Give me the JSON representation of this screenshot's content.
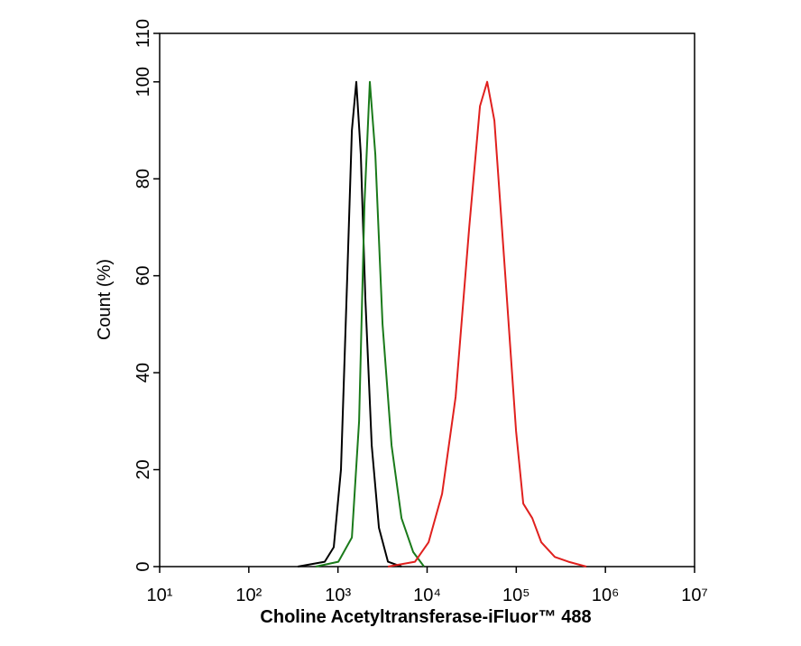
{
  "chart_data": {
    "type": "line",
    "xlabel": "Choline Acetyltransferase-iFluor™ 488",
    "ylabel": "Count  (%)",
    "xscale": "log",
    "xlim": [
      10,
      10000000
    ],
    "xticks": [
      {
        "value": 10,
        "label": "10¹"
      },
      {
        "value": 100,
        "label": "10²"
      },
      {
        "value": 1000,
        "label": "10³"
      },
      {
        "value": 10000,
        "label": "10⁴"
      },
      {
        "value": 100000,
        "label": "10⁵"
      },
      {
        "value": 1000000,
        "label": "10⁶"
      },
      {
        "value": 10000000,
        "label": "10⁷"
      }
    ],
    "ylim": [
      0,
      110
    ],
    "yticks": [
      0,
      20,
      40,
      60,
      80,
      100,
      110
    ],
    "series": [
      {
        "color": "#000000",
        "x": [
          354,
          711,
          897,
          1081,
          1273,
          1432,
          1607,
          1806,
          2032,
          2393,
          2880,
          3637,
          5162
        ],
        "values": [
          0,
          1,
          4,
          20,
          60,
          90,
          100,
          85,
          55,
          25,
          8,
          1,
          0
        ]
      },
      {
        "color": "#1a7a1a",
        "x": [
          564,
          1009,
          1432,
          1726,
          1985,
          2280,
          2623,
          3162,
          3990,
          5162,
          6982,
          9246
        ],
        "values": [
          0,
          1,
          6,
          30,
          75,
          100,
          85,
          50,
          25,
          10,
          3,
          0
        ]
      },
      {
        "color": "#e0201e",
        "x": [
          3637,
          7311,
          10370,
          14720,
          20890,
          29650,
          39190,
          47200,
          56890,
          75340,
          99550,
          119900,
          151400,
          191000,
          271000,
          384700,
          612400
        ],
        "values": [
          0,
          1,
          5,
          15,
          35,
          70,
          95,
          100,
          92,
          60,
          28,
          13,
          10,
          5,
          2,
          1,
          0
        ]
      }
    ]
  }
}
